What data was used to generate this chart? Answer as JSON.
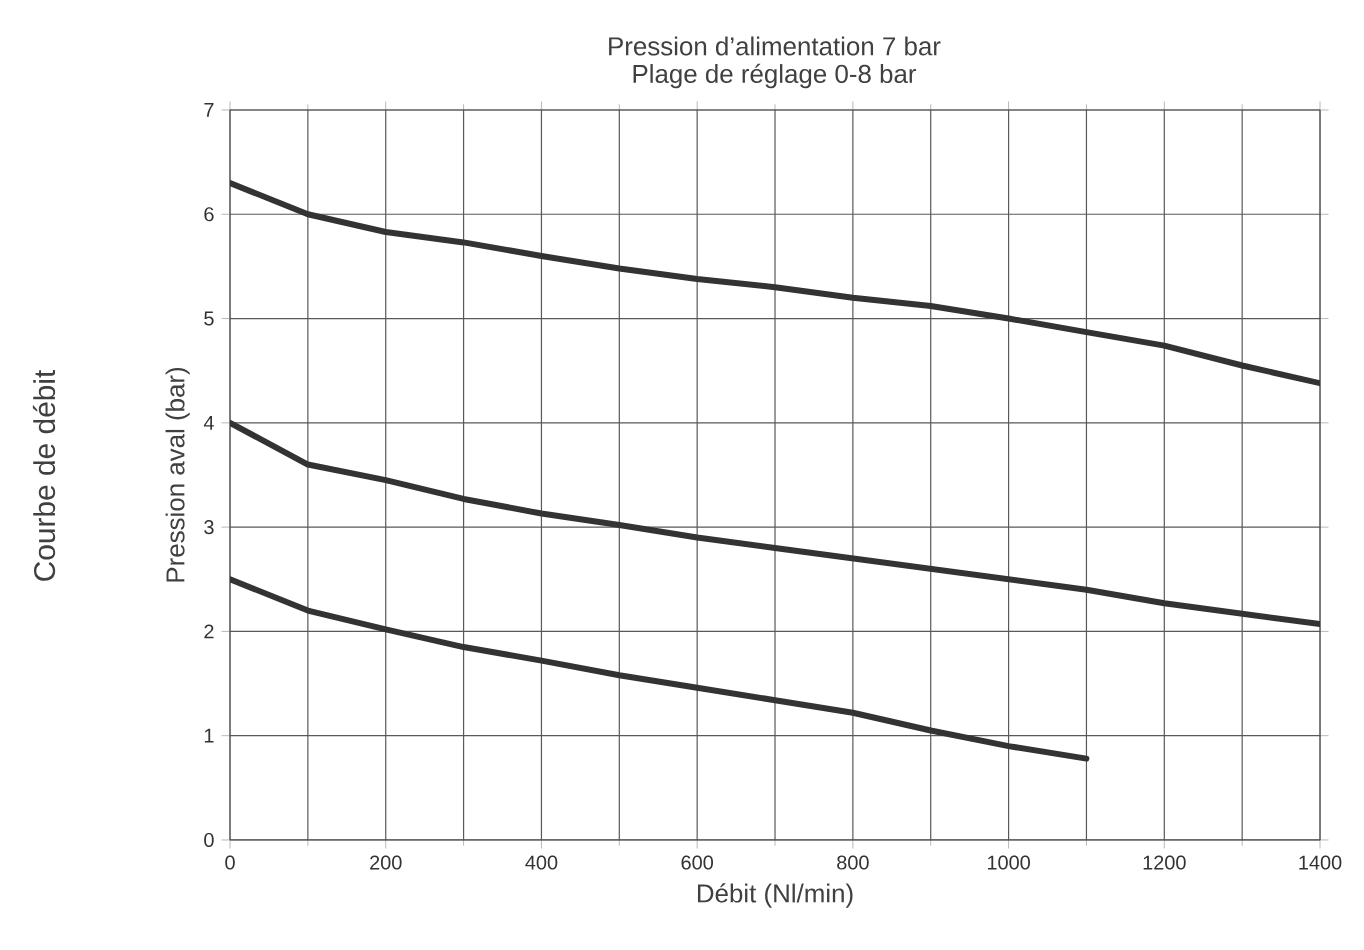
{
  "chart_data": {
    "type": "line",
    "title": "Pression d’alimentation 7 bar",
    "subtitle": "Plage de réglage 0-8 bar",
    "xlabel": "Débit (Nl/min)",
    "ylabel": "Pression aval (bar)",
    "annotations": [
      "Courbe de débit"
    ],
    "x": [
      0,
      100,
      200,
      300,
      400,
      500,
      600,
      700,
      800,
      900,
      1000,
      1100,
      1200,
      1300,
      1400
    ],
    "series": [
      {
        "color": "#333333",
        "values": [
          6.3,
          6.0,
          5.83,
          5.73,
          5.6,
          5.48,
          5.38,
          5.3,
          5.2,
          5.12,
          5.0,
          4.87,
          4.74,
          4.55,
          4.38
        ]
      },
      {
        "color": "#333333",
        "values": [
          4.0,
          3.6,
          3.45,
          3.27,
          3.13,
          3.02,
          2.9,
          2.8,
          2.7,
          2.6,
          2.5,
          2.4,
          2.27,
          2.17,
          2.07
        ]
      },
      {
        "color": "#333333",
        "values": [
          2.5,
          2.2,
          2.02,
          1.85,
          1.72,
          1.58,
          1.46,
          1.34,
          1.22,
          1.05,
          0.9,
          0.78,
          null,
          null,
          null
        ]
      }
    ],
    "xlim": [
      0,
      1400
    ],
    "ylim": [
      0,
      7
    ],
    "xticks": [
      0,
      200,
      400,
      600,
      800,
      1000,
      1200,
      1400
    ],
    "yticks": [
      0,
      1,
      2,
      3,
      4,
      5,
      6,
      7
    ],
    "grid": true,
    "marker": "none",
    "line_style": "solid"
  }
}
